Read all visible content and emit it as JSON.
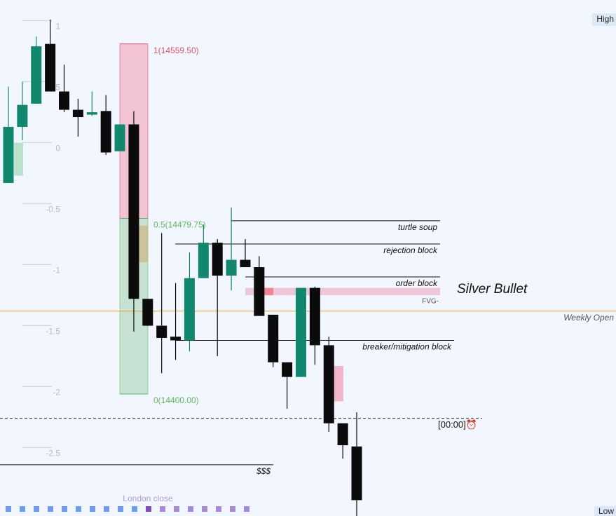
{
  "chart_data": {
    "type": "candlestick",
    "title": "Silver Bullet",
    "ylim": [
      -3.01,
      1.22
    ],
    "yticks": [
      1,
      0.5,
      0,
      -0.5,
      -1,
      -1.5,
      -2,
      -2.5
    ],
    "up_color": "#12876f",
    "down_color": "#0b0b0b",
    "open": [
      -0.28,
      0.18,
      0.37,
      0.86,
      0.47,
      0.32,
      0.28,
      0.31,
      -0.02,
      0.2,
      -1.23,
      -1.45,
      -1.54,
      -1.57,
      -1.06,
      -0.77,
      -1.04,
      -0.91,
      -0.97,
      -1.36,
      -1.75,
      -1.87,
      -1.14,
      -1.61,
      -2.25,
      -2.44
    ],
    "high": [
      0.51,
      0.55,
      0.92,
      1.06,
      0.69,
      0.41,
      0.47,
      0.44,
      0.2,
      0.31,
      -1.23,
      -0.69,
      -1.1,
      -0.85,
      -0.62,
      -0.74,
      -0.48,
      -0.74,
      -0.88,
      -1.36,
      -1.75,
      -1.14,
      -1.13,
      -1.54,
      -2.25,
      -2.16
    ],
    "low": [
      -0.28,
      0.07,
      0.37,
      0.47,
      0.3,
      0.1,
      0.27,
      -0.05,
      -0.02,
      -1.5,
      -1.45,
      -1.84,
      -1.73,
      -1.66,
      -1.06,
      -1.7,
      -1.16,
      -0.97,
      -1.37,
      -1.79,
      -2.13,
      -1.87,
      -1.77,
      -2.32,
      -2.54,
      -3.01
    ],
    "close": [
      0.18,
      0.36,
      0.84,
      0.47,
      0.32,
      0.26,
      0.3,
      -0.03,
      0.2,
      -1.23,
      -1.45,
      -1.55,
      -1.57,
      -1.06,
      -0.77,
      -1.04,
      -0.91,
      -0.97,
      -1.37,
      -1.75,
      -1.87,
      -1.14,
      -1.61,
      -2.25,
      -2.43,
      -2.88
    ],
    "fib_levels": [
      {
        "label": "1(14559.50)",
        "value": 0.86,
        "color": "#e0506a"
      },
      {
        "label": "0.5(14479.75)",
        "value": -0.57,
        "color": "#5cb85c"
      },
      {
        "label": "0(14400.00)",
        "value": -2.01,
        "color": "#5cb85c"
      }
    ],
    "levels": [
      {
        "label": "turtle soup",
        "value": -0.59
      },
      {
        "label": "rejection block",
        "value": -0.78
      },
      {
        "label": "order block",
        "value": -1.05
      },
      {
        "label": "breaker/mitigation block",
        "value": -1.57
      },
      {
        "label": "$$$",
        "value": -2.59
      }
    ],
    "fvg": {
      "label": "FVG-",
      "top": -1.14,
      "bottom": -1.2
    },
    "weekly_open": {
      "label": "Weekly Open",
      "value": -1.33,
      "color": "#f0a030"
    },
    "session_line": {
      "label": "[00:00]⏰",
      "value": -2.21
    },
    "high_label": "High",
    "low_label": "Low",
    "session_label": "London close"
  }
}
